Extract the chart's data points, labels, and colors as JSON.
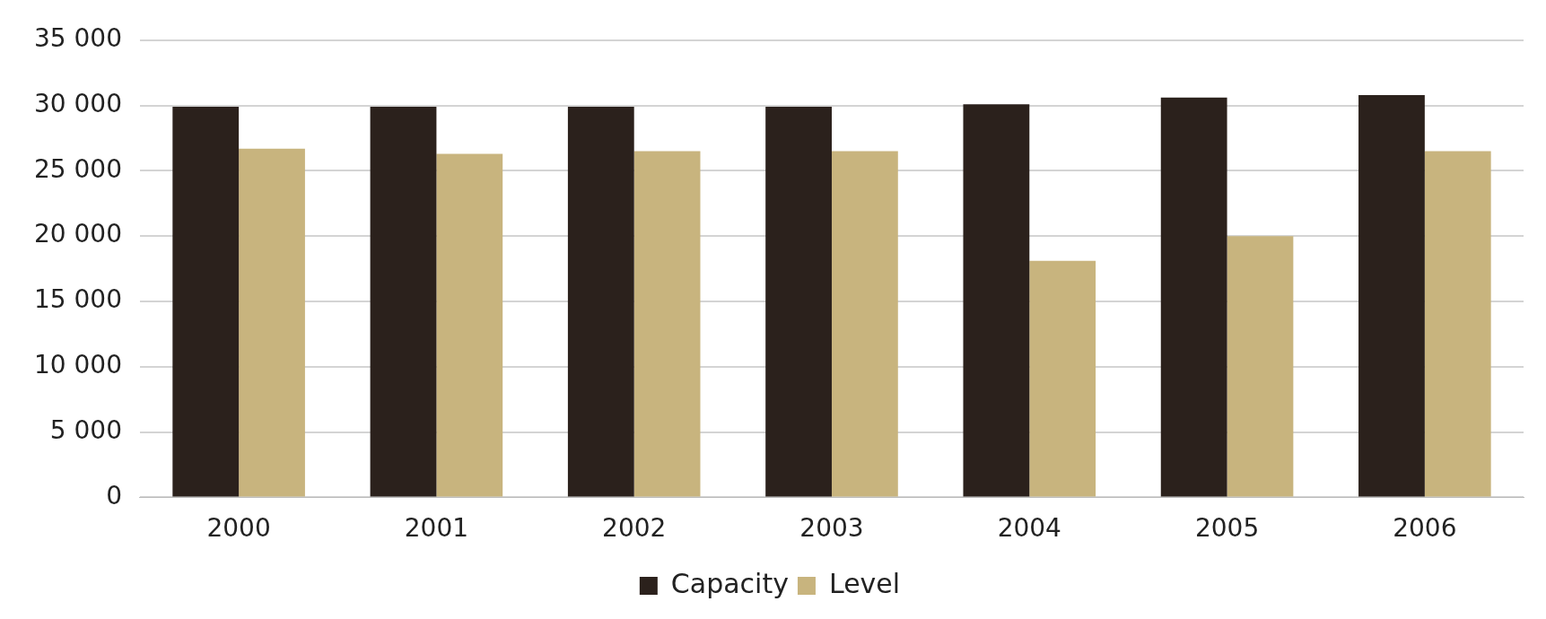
{
  "chart_data": {
    "type": "bar",
    "categories": [
      "2000",
      "2001",
      "2002",
      "2003",
      "2004",
      "2005",
      "2006"
    ],
    "series": [
      {
        "name": "Capacity",
        "color": "#2b211c",
        "values": [
          29900,
          29900,
          29900,
          29900,
          30100,
          30600,
          30800
        ]
      },
      {
        "name": "Level",
        "color": "#c8b47e",
        "values": [
          26700,
          26300,
          26500,
          26500,
          18100,
          20000,
          26500
        ]
      }
    ],
    "ylim": [
      0,
      35000
    ],
    "yticks": [
      {
        "value": 0,
        "label": "0"
      },
      {
        "value": 5000,
        "label": "5 000"
      },
      {
        "value": 10000,
        "label": "10 000"
      },
      {
        "value": 15000,
        "label": "15 000"
      },
      {
        "value": 20000,
        "label": "20 000"
      },
      {
        "value": 25000,
        "label": "25 000"
      },
      {
        "value": 30000,
        "label": "30 000"
      },
      {
        "value": 35000,
        "label": "35 000"
      }
    ],
    "grid": "y",
    "legend": "bottom"
  }
}
